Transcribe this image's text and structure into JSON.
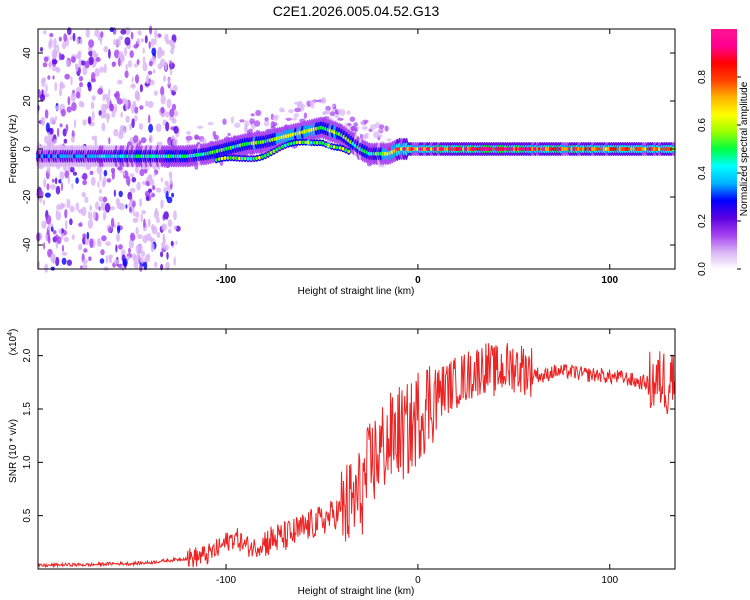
{
  "figure_title": "C2E1.2026.005.04.52.G13",
  "chart_data": [
    {
      "type": "heatmap",
      "name": "spectrogram",
      "xlabel": "Height of straight line (km)",
      "ylabel": "Frequency (Hz)",
      "xlim": [
        -198,
        134
      ],
      "ylim": [
        -50,
        50
      ],
      "xticks": [
        -100,
        0,
        100
      ],
      "xtick_labels": [
        "-100",
        "0",
        "100"
      ],
      "yticks": [
        -40,
        -20,
        0,
        20,
        40
      ],
      "ytick_labels": [
        "-40",
        "-20",
        "0",
        "20",
        "40"
      ],
      "colorbar": {
        "label": "Normalized spectral amplitude",
        "range": [
          0.0,
          1.0
        ],
        "ticks": [
          0.0,
          0.2,
          0.4,
          0.6,
          0.8
        ],
        "tick_labels": [
          "0.0",
          "0.2",
          "0.4",
          "0.6",
          "0.8"
        ],
        "colormap": [
          "#ffffff",
          "#d9b3f5",
          "#a43ff0",
          "#5a00e0",
          "#0000ff",
          "#00b4ff",
          "#00ffff",
          "#00ff40",
          "#9cff00",
          "#ffff00",
          "#ffb400",
          "#ff4000",
          "#ff0000",
          "#ff0090",
          "#ff1493"
        ]
      },
      "ridge": {
        "x": [
          -198,
          -180,
          -160,
          -140,
          -130,
          -120,
          -110,
          -100,
          -90,
          -80,
          -70,
          -60,
          -50,
          -40,
          -35,
          -30,
          -25,
          -20,
          -15,
          -10,
          0,
          10,
          20,
          40,
          60,
          80,
          100,
          120,
          134
        ],
        "y": [
          -3,
          -3,
          -3,
          -3,
          -3,
          -3,
          -2,
          0,
          2,
          3,
          5,
          7,
          9,
          6,
          3,
          0,
          -2,
          -2,
          -2,
          0,
          0,
          0,
          0,
          0,
          0,
          0,
          0,
          0,
          0
        ],
        "amplitude": [
          0.3,
          0.35,
          0.4,
          0.45,
          0.5,
          0.45,
          0.5,
          0.5,
          0.55,
          0.55,
          0.6,
          0.6,
          0.55,
          0.6,
          0.5,
          0.45,
          0.5,
          0.5,
          0.6,
          0.7,
          0.75,
          0.8,
          0.85,
          0.85,
          0.8,
          0.8,
          0.75,
          0.75,
          0.7
        ]
      }
    },
    {
      "type": "line",
      "name": "snr",
      "xlabel": "Height of straight line (km)",
      "ylabel": "SNR (10 * v/v)",
      "y_multiplier": "(x10",
      "y_multiplier_exp": "4",
      "y_multiplier_close": ")",
      "xlim": [
        -198,
        134
      ],
      "ylim": [
        0,
        2.25
      ],
      "xticks": [
        -100,
        0,
        100
      ],
      "xtick_labels": [
        "-100",
        "0",
        "100"
      ],
      "yticks": [
        0.5,
        1.0,
        1.5,
        2.0
      ],
      "ytick_labels": [
        "0.5",
        "1.0",
        "1.5",
        "2.0"
      ],
      "color": "#ee2222",
      "series": [
        {
          "name": "SNR",
          "x": [
            -198,
            -185,
            -170,
            -160,
            -150,
            -140,
            -130,
            -120,
            -110,
            -105,
            -100,
            -95,
            -90,
            -85,
            -80,
            -75,
            -70,
            -65,
            -60,
            -55,
            -50,
            -45,
            -40,
            -35,
            -30,
            -28,
            -25,
            -22,
            -20,
            -18,
            -15,
            -12,
            -10,
            -8,
            -5,
            -2,
            0,
            5,
            10,
            15,
            20,
            25,
            30,
            35,
            40,
            45,
            50,
            55,
            60,
            65,
            70,
            75,
            80,
            85,
            90,
            95,
            100,
            105,
            110,
            115,
            120,
            125,
            128,
            130,
            132,
            134
          ],
          "y": [
            0.03,
            0.04,
            0.04,
            0.05,
            0.05,
            0.06,
            0.08,
            0.1,
            0.13,
            0.18,
            0.25,
            0.3,
            0.22,
            0.2,
            0.25,
            0.28,
            0.3,
            0.33,
            0.38,
            0.42,
            0.45,
            0.5,
            0.55,
            0.6,
            0.7,
            0.8,
            0.95,
            1.05,
            1.1,
            1.15,
            1.2,
            1.25,
            1.3,
            1.25,
            1.3,
            1.35,
            1.45,
            1.55,
            1.65,
            1.7,
            1.75,
            1.8,
            1.85,
            1.9,
            1.85,
            1.88,
            1.9,
            1.88,
            1.85,
            1.8,
            1.85,
            1.85,
            1.85,
            1.83,
            1.82,
            1.82,
            1.8,
            1.8,
            1.78,
            1.75,
            1.75,
            1.75,
            1.8,
            1.7,
            1.85,
            1.7
          ]
        }
      ]
    }
  ]
}
